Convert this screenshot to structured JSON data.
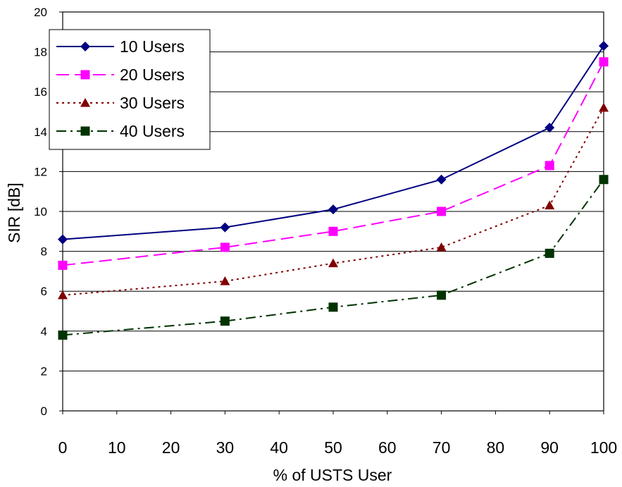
{
  "chart_data": {
    "type": "line",
    "xlabel": "% of USTS User",
    "ylabel": "SIR [dB]",
    "xlim": [
      0,
      100
    ],
    "ylim": [
      0,
      20
    ],
    "xticks": [
      0,
      10,
      20,
      30,
      40,
      50,
      60,
      70,
      80,
      90,
      100
    ],
    "yticks": [
      0,
      2,
      4,
      6,
      8,
      10,
      12,
      14,
      16,
      18,
      20
    ],
    "grid": "horizontal",
    "legend_position": "top-left",
    "x": [
      0,
      30,
      50,
      70,
      90,
      100
    ],
    "series": [
      {
        "name": "10 Users",
        "values": [
          8.6,
          9.2,
          10.1,
          11.6,
          14.2,
          18.3
        ],
        "color": "#000080",
        "marker": "diamond",
        "line_style": "solid"
      },
      {
        "name": "20 Users",
        "values": [
          7.3,
          8.2,
          9.0,
          10.0,
          12.3,
          17.5
        ],
        "color": "#ff00ff",
        "marker": "square",
        "line_style": "dashed"
      },
      {
        "name": "30 Users",
        "values": [
          5.8,
          6.5,
          7.4,
          8.2,
          10.3,
          15.2
        ],
        "color": "#800000",
        "marker": "triangle",
        "line_style": "dotted"
      },
      {
        "name": "40 Users",
        "values": [
          3.8,
          4.5,
          5.2,
          5.8,
          7.9,
          11.6
        ],
        "color": "#003300",
        "marker": "square",
        "line_style": "dash-dot"
      }
    ]
  }
}
